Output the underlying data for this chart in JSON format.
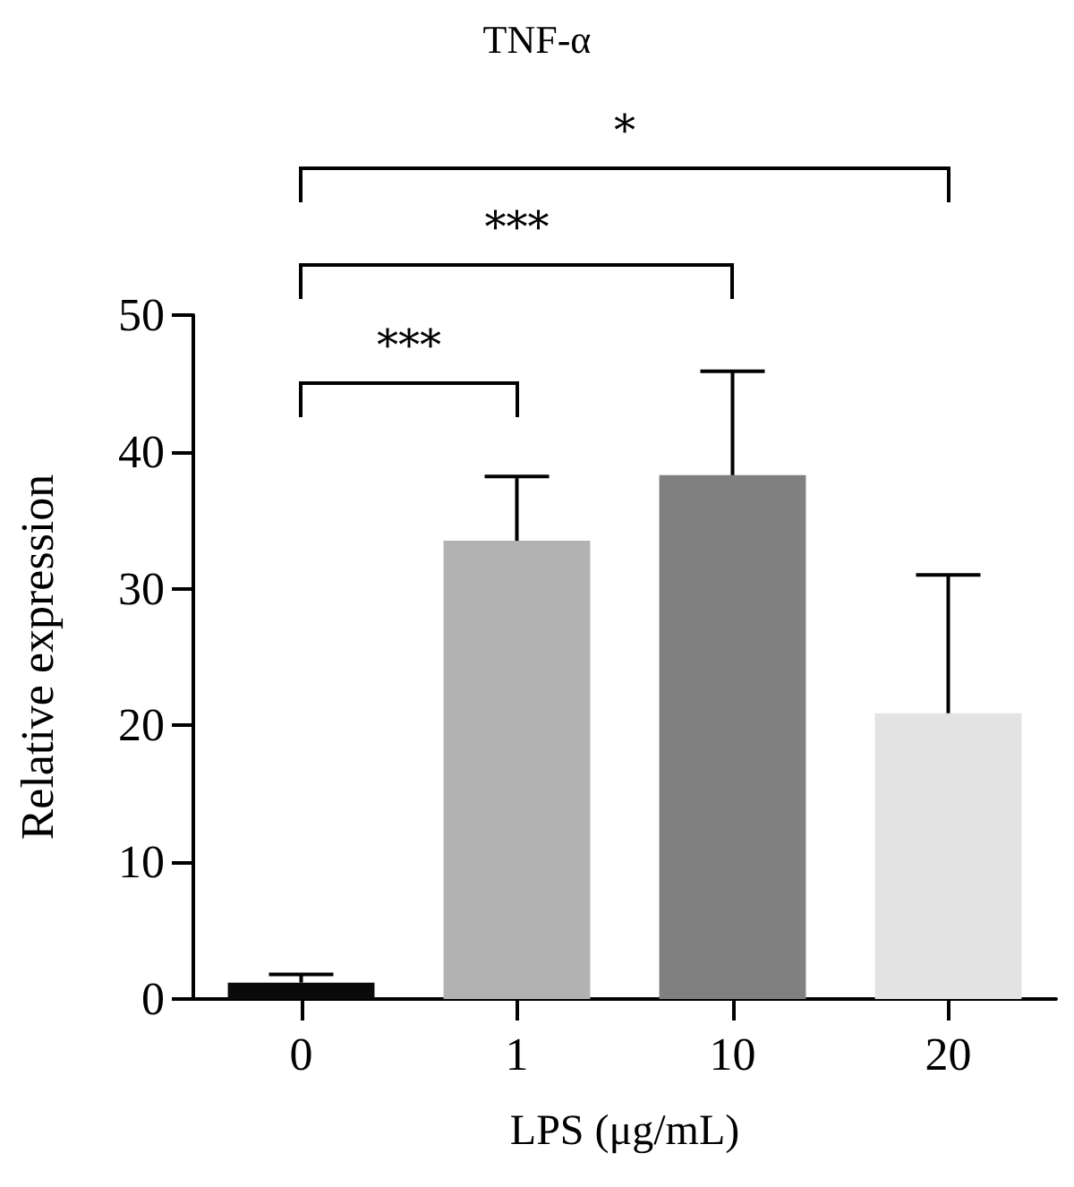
{
  "chart_data": {
    "type": "bar",
    "title": "TNF-α",
    "xlabel": "LPS (μg/mL)",
    "ylabel": "Relative expression",
    "categories": [
      "0",
      "1",
      "10",
      "20"
    ],
    "values": [
      1.2,
      33.5,
      38.3,
      20.9
    ],
    "colors": [
      "#0a0a0a",
      "#b2b2b2",
      "#808080",
      "#e3e3e3"
    ],
    "errors": [
      [
        1.2,
        1.8
      ],
      [
        33.5,
        38.2
      ],
      [
        38.3,
        45.9
      ],
      [
        20.9,
        31.0
      ]
    ],
    "ylim": [
      0,
      50
    ],
    "yticks": [
      0,
      10,
      20,
      30,
      40,
      50
    ],
    "grid": false,
    "annotations": [
      "***",
      "***",
      "*"
    ]
  }
}
